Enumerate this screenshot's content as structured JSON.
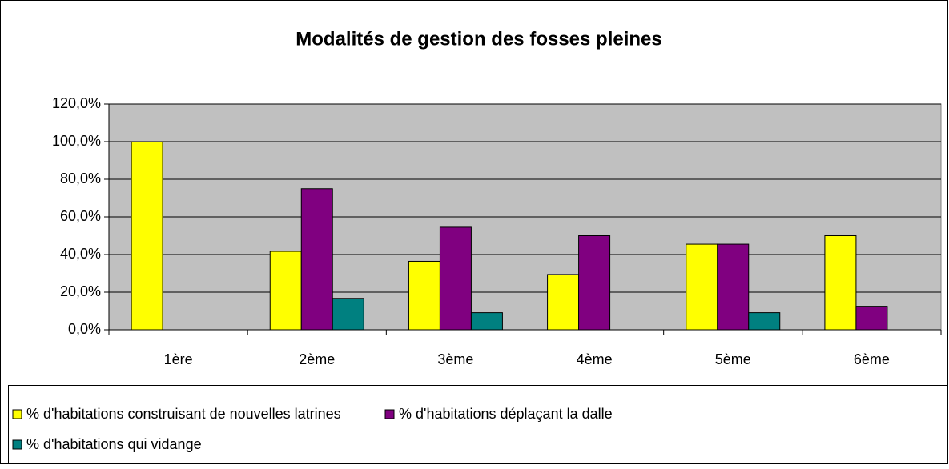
{
  "chart_data": {
    "type": "bar",
    "title": "Modalités de gestion des fosses pleines",
    "categories": [
      "1ère",
      "2ème",
      "3ème",
      "4ème",
      "5ème",
      "6ème"
    ],
    "series": [
      {
        "name": "% d'habitations construisant de nouvelles latrines",
        "color": "#ffff00",
        "values": [
          100,
          41.7,
          36.4,
          29.4,
          45.5,
          50
        ]
      },
      {
        "name": "% d'habitations déplaçant la dalle",
        "color": "#800080",
        "values": [
          0,
          75,
          54.5,
          50,
          45.5,
          12.5
        ]
      },
      {
        "name": "% d'habitations qui vidange",
        "color": "#008080",
        "values": [
          0,
          16.7,
          9.1,
          0,
          9.1,
          0
        ]
      }
    ],
    "ylim": [
      0,
      120
    ],
    "yticks": [
      {
        "value": 0,
        "label": "0,0%"
      },
      {
        "value": 20,
        "label": "20,0%"
      },
      {
        "value": 40,
        "label": "40,0%"
      },
      {
        "value": 60,
        "label": "60,0%"
      },
      {
        "value": 80,
        "label": "80,0%"
      },
      {
        "value": 100,
        "label": "100,0%"
      },
      {
        "value": 120,
        "label": "120,0%"
      }
    ],
    "grid": true,
    "legend": "bottom"
  }
}
